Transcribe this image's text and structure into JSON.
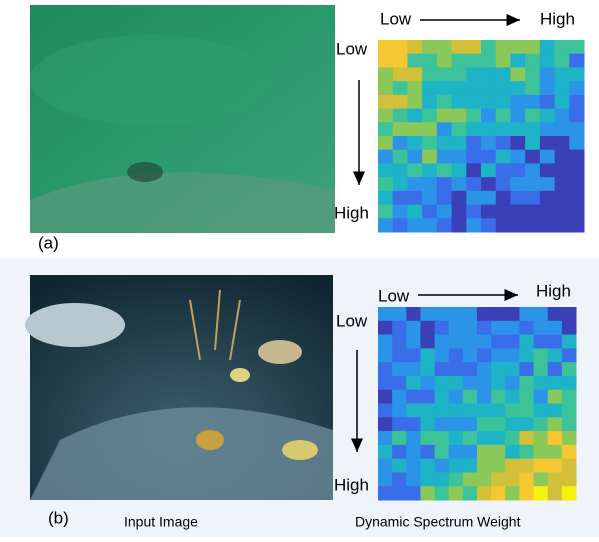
{
  "panels": [
    {
      "label": "(a)",
      "top_low": "Low",
      "top_high": "High",
      "side_low": "Low",
      "side_high": "High"
    },
    {
      "label": "(b)",
      "top_low": "Low",
      "top_high": "High",
      "side_low": "Low",
      "side_high": "High"
    }
  ],
  "captions": {
    "input": "Input Image",
    "weight": "Dynamic Spectrum Weight"
  }
}
